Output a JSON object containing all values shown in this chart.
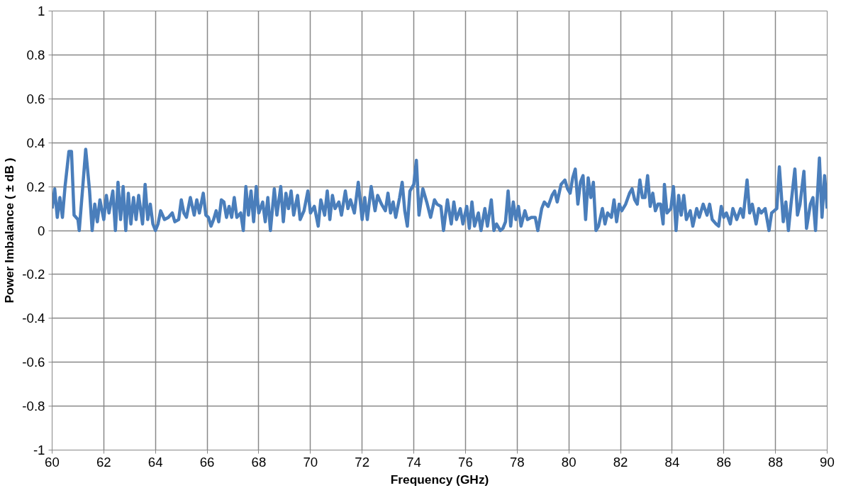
{
  "chart_data": {
    "type": "line",
    "xlabel": "Frequency (GHz)",
    "ylabel": "Power Imbalance ( ± dB )",
    "xlim": [
      60,
      90
    ],
    "xticks": [
      60,
      62,
      64,
      66,
      68,
      70,
      72,
      74,
      76,
      78,
      80,
      82,
      84,
      86,
      88,
      90
    ],
    "ylim": [
      -1,
      1
    ],
    "yticks": [
      -1,
      -0.8,
      -0.6,
      -0.4,
      -0.2,
      0,
      0.2,
      0.4,
      0.6,
      0.8,
      1
    ],
    "grid": true,
    "marker": "none",
    "line_style": "solid",
    "series": [
      {
        "color": "#4a7ebb",
        "x": [
          60.0,
          60.1,
          60.2,
          60.3,
          60.4,
          60.5,
          60.65,
          60.75,
          60.85,
          61.0,
          61.05,
          61.2,
          61.3,
          61.45,
          61.55,
          61.65,
          61.75,
          61.85,
          62.0,
          62.1,
          62.2,
          62.35,
          62.45,
          62.55,
          62.65,
          62.75,
          62.85,
          62.95,
          63.05,
          63.15,
          63.25,
          63.35,
          63.5,
          63.6,
          63.7,
          63.8,
          63.9,
          64.0,
          64.1,
          64.2,
          64.35,
          64.5,
          64.65,
          64.75,
          64.9,
          65.0,
          65.1,
          65.2,
          65.35,
          65.5,
          65.6,
          65.7,
          65.85,
          65.95,
          66.05,
          66.15,
          66.25,
          66.35,
          66.45,
          66.55,
          66.65,
          66.75,
          66.85,
          66.95,
          67.05,
          67.15,
          67.3,
          67.4,
          67.5,
          67.6,
          67.7,
          67.8,
          67.9,
          68.0,
          68.15,
          68.25,
          68.35,
          68.45,
          68.6,
          68.7,
          68.85,
          68.95,
          69.05,
          69.15,
          69.25,
          69.35,
          69.5,
          69.6,
          69.75,
          69.9,
          70.0,
          70.15,
          70.3,
          70.4,
          70.55,
          70.65,
          70.75,
          70.85,
          70.95,
          71.1,
          71.2,
          71.35,
          71.45,
          71.55,
          71.7,
          71.85,
          72.0,
          72.1,
          72.2,
          72.35,
          72.5,
          72.6,
          72.75,
          72.9,
          73.0,
          73.1,
          73.2,
          73.3,
          73.45,
          73.55,
          73.65,
          73.75,
          73.85,
          74.0,
          74.1,
          74.2,
          74.35,
          74.5,
          74.65,
          74.8,
          74.9,
          75.05,
          75.15,
          75.3,
          75.45,
          75.55,
          75.65,
          75.8,
          75.9,
          76.05,
          76.15,
          76.25,
          76.35,
          76.5,
          76.6,
          76.75,
          76.85,
          77.0,
          77.1,
          77.2,
          77.35,
          77.45,
          77.55,
          77.65,
          77.75,
          77.85,
          77.95,
          78.05,
          78.15,
          78.3,
          78.4,
          78.55,
          78.7,
          78.8,
          78.95,
          79.05,
          79.2,
          79.35,
          79.45,
          79.55,
          79.7,
          79.85,
          79.95,
          80.05,
          80.15,
          80.25,
          80.35,
          80.45,
          80.55,
          80.65,
          80.75,
          80.85,
          80.95,
          81.05,
          81.15,
          81.3,
          81.4,
          81.5,
          81.65,
          81.75,
          81.85,
          81.95,
          82.05,
          82.2,
          82.35,
          82.45,
          82.55,
          82.65,
          82.75,
          82.85,
          82.95,
          83.05,
          83.15,
          83.25,
          83.35,
          83.45,
          83.55,
          83.65,
          83.7,
          83.8,
          83.95,
          84.05,
          84.15,
          84.25,
          84.35,
          84.45,
          84.55,
          84.7,
          84.8,
          84.95,
          85.05,
          85.2,
          85.35,
          85.45,
          85.55,
          85.7,
          85.8,
          85.9,
          86.0,
          86.1,
          86.25,
          86.35,
          86.5,
          86.65,
          86.75,
          86.9,
          87.0,
          87.1,
          87.25,
          87.35,
          87.45,
          87.6,
          87.75,
          87.85,
          87.95,
          88.05,
          88.15,
          88.3,
          88.4,
          88.5,
          88.6,
          88.75,
          88.85,
          88.95,
          89.1,
          89.2,
          89.35,
          89.45,
          89.55,
          89.7,
          89.8,
          89.9,
          90.0
        ],
        "values": [
          0.1,
          0.19,
          0.06,
          0.15,
          0.06,
          0.2,
          0.36,
          0.36,
          0.07,
          0.05,
          0.0,
          0.22,
          0.37,
          0.18,
          0.0,
          0.12,
          0.04,
          0.14,
          0.05,
          0.16,
          0.08,
          0.18,
          0.0,
          0.22,
          0.05,
          0.2,
          0.0,
          0.17,
          0.03,
          0.15,
          0.05,
          0.16,
          0.03,
          0.21,
          0.05,
          0.12,
          0.03,
          0.0,
          0.03,
          0.09,
          0.05,
          0.06,
          0.08,
          0.04,
          0.05,
          0.14,
          0.08,
          0.06,
          0.15,
          0.07,
          0.14,
          0.08,
          0.17,
          0.07,
          0.06,
          0.02,
          0.05,
          0.09,
          0.04,
          0.14,
          0.13,
          0.06,
          0.11,
          0.06,
          0.15,
          0.06,
          0.08,
          0.0,
          0.2,
          0.07,
          0.18,
          0.04,
          0.2,
          0.08,
          0.13,
          0.04,
          0.15,
          0.0,
          0.19,
          0.07,
          0.2,
          0.04,
          0.17,
          0.1,
          0.18,
          0.07,
          0.16,
          0.05,
          0.09,
          0.18,
          0.08,
          0.11,
          0.02,
          0.14,
          0.07,
          0.18,
          0.05,
          0.16,
          0.1,
          0.13,
          0.07,
          0.18,
          0.1,
          0.14,
          0.08,
          0.22,
          0.05,
          0.15,
          0.05,
          0.2,
          0.09,
          0.16,
          0.12,
          0.09,
          0.17,
          0.08,
          0.13,
          0.06,
          0.15,
          0.22,
          0.09,
          0.02,
          0.18,
          0.21,
          0.32,
          0.07,
          0.19,
          0.13,
          0.06,
          0.14,
          0.12,
          0.11,
          0.0,
          0.14,
          0.03,
          0.13,
          0.05,
          0.1,
          0.03,
          0.11,
          0.01,
          0.13,
          0.02,
          0.08,
          0.0,
          0.1,
          0.02,
          0.14,
          0.0,
          0.03,
          0.0,
          0.01,
          0.04,
          0.18,
          0.02,
          0.13,
          0.05,
          0.11,
          0.02,
          0.09,
          0.05,
          0.06,
          0.06,
          0.0,
          0.1,
          0.13,
          0.11,
          0.16,
          0.18,
          0.13,
          0.21,
          0.23,
          0.19,
          0.17,
          0.24,
          0.28,
          0.12,
          0.22,
          0.25,
          0.05,
          0.24,
          0.15,
          0.22,
          0.0,
          0.02,
          0.1,
          0.03,
          0.08,
          0.06,
          0.14,
          0.04,
          0.12,
          0.09,
          0.12,
          0.17,
          0.19,
          0.14,
          0.12,
          0.23,
          0.15,
          0.15,
          0.25,
          0.11,
          0.17,
          0.09,
          0.12,
          0.12,
          0.03,
          0.21,
          0.08,
          0.1,
          0.2,
          0.0,
          0.16,
          0.07,
          0.16,
          0.05,
          0.09,
          0.02,
          0.1,
          0.06,
          0.12,
          0.07,
          0.12,
          0.05,
          0.03,
          0.02,
          0.11,
          0.06,
          0.08,
          0.03,
          0.1,
          0.05,
          0.1,
          0.06,
          0.23,
          0.08,
          0.12,
          0.03,
          0.1,
          0.08,
          0.1,
          0.0,
          0.08,
          0.09,
          0.1,
          0.29,
          0.04,
          0.13,
          0.0,
          0.12,
          0.28,
          0.07,
          0.12,
          0.27,
          0.01,
          0.12,
          0.15,
          0.0,
          0.33,
          0.06,
          0.25,
          0.1
        ]
      }
    ]
  }
}
